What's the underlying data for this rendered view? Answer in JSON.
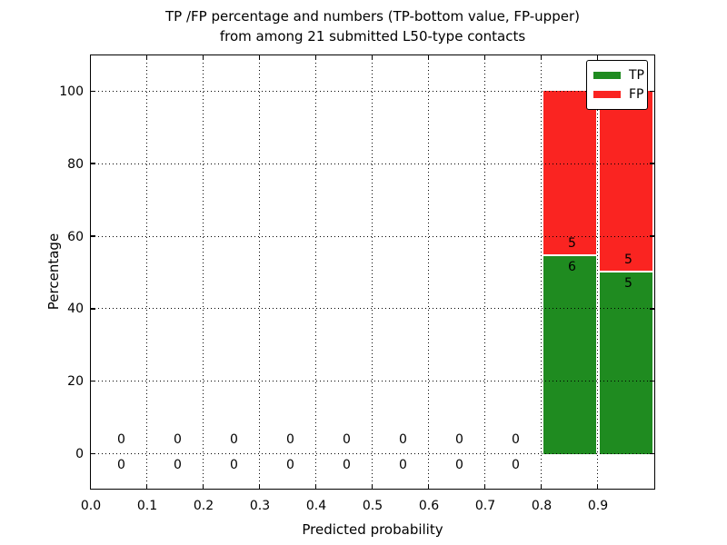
{
  "chart_data": {
    "type": "bar",
    "stacked": true,
    "title_line1": "TP /FP percentage and numbers (TP-bottom value, FP-upper)",
    "title_line2": "from among 21 submitted L50-type contacts",
    "xlabel": "Predicted probability",
    "ylabel": "Percentage",
    "total_contacts": 21,
    "xlim": [
      0.0,
      1.0
    ],
    "ylim": [
      -9.5,
      110
    ],
    "xticks": [
      "0.0",
      "0.1",
      "0.2",
      "0.3",
      "0.4",
      "0.5",
      "0.6",
      "0.7",
      "0.8",
      "0.9"
    ],
    "yticks": [
      0,
      20,
      40,
      60,
      80,
      100
    ],
    "grid": "dotted",
    "legend_position": "upper-right",
    "colors": {
      "tp": "#1f8b20",
      "fp": "#fa2421",
      "divider": "#ffffff"
    },
    "legend": [
      {
        "label": "TP",
        "color": "#1f8b20"
      },
      {
        "label": "FP",
        "color": "#fa2421"
      }
    ],
    "series": [
      {
        "name": "TP",
        "values_pct": [
          0,
          0,
          0,
          0,
          0,
          0,
          0,
          0,
          54.55,
          50
        ],
        "counts": [
          0,
          0,
          0,
          0,
          0,
          0,
          0,
          0,
          6,
          5
        ]
      },
      {
        "name": "FP",
        "values_pct": [
          0,
          0,
          0,
          0,
          0,
          0,
          0,
          0,
          45.45,
          50
        ],
        "counts": [
          0,
          0,
          0,
          0,
          0,
          0,
          0,
          0,
          5,
          5
        ]
      }
    ],
    "bins": [
      {
        "x0": 0.0,
        "x1": 0.1,
        "tp": 0,
        "fp": 0,
        "tp_pct": 0,
        "fp_pct": 0
      },
      {
        "x0": 0.1,
        "x1": 0.2,
        "tp": 0,
        "fp": 0,
        "tp_pct": 0,
        "fp_pct": 0
      },
      {
        "x0": 0.2,
        "x1": 0.3,
        "tp": 0,
        "fp": 0,
        "tp_pct": 0,
        "fp_pct": 0
      },
      {
        "x0": 0.3,
        "x1": 0.4,
        "tp": 0,
        "fp": 0,
        "tp_pct": 0,
        "fp_pct": 0
      },
      {
        "x0": 0.4,
        "x1": 0.5,
        "tp": 0,
        "fp": 0,
        "tp_pct": 0,
        "fp_pct": 0
      },
      {
        "x0": 0.5,
        "x1": 0.6,
        "tp": 0,
        "fp": 0,
        "tp_pct": 0,
        "fp_pct": 0
      },
      {
        "x0": 0.6,
        "x1": 0.7,
        "tp": 0,
        "fp": 0,
        "tp_pct": 0,
        "fp_pct": 0
      },
      {
        "x0": 0.7,
        "x1": 0.8,
        "tp": 0,
        "fp": 0,
        "tp_pct": 0,
        "fp_pct": 0
      },
      {
        "x0": 0.8,
        "x1": 0.9,
        "tp": 6,
        "fp": 5,
        "tp_pct": 54.55,
        "fp_pct": 45.45
      },
      {
        "x0": 0.9,
        "x1": 1.0,
        "tp": 5,
        "fp": 5,
        "tp_pct": 50,
        "fp_pct": 50
      }
    ]
  }
}
